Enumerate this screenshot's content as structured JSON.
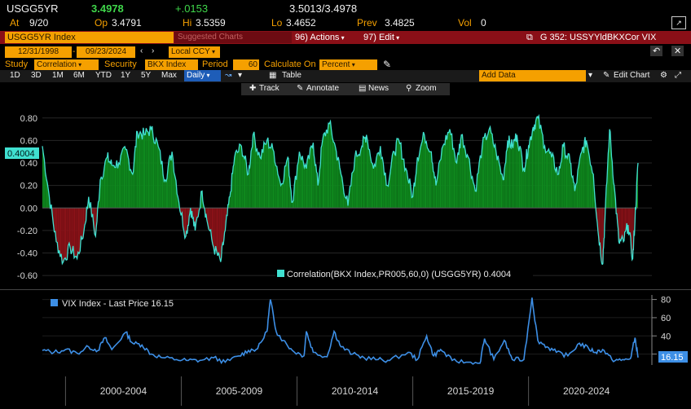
{
  "quote": {
    "ticker": "USGG5YR",
    "last": "3.4978",
    "change": "+.0153",
    "bid_ask": "3.5013/3.4978",
    "at_label": "At",
    "at_date": "9/20",
    "op_label": "Op",
    "op": "3.4791",
    "hi_label": "Hi",
    "hi": "3.5359",
    "lo_label": "Lo",
    "lo": "3.4652",
    "prev_label": "Prev",
    "prev": "3.4825",
    "vol_label": "Vol",
    "vol": "0"
  },
  "titlebar": {
    "security": "USGG5YR Index",
    "suggested": "Suggested Charts",
    "actions": "Actions",
    "actions_num": "96)",
    "edit": "Edit",
    "edit_num": "97)",
    "chart_title": "G 352: USSYYldBKXCor VIX"
  },
  "range": {
    "start": "12/31/1998",
    "end": "09/23/2024",
    "currency": "Local CCY"
  },
  "study": {
    "study_label": "Study",
    "study_value": "Correlation",
    "security_label": "Security",
    "security_value": "BKX Index",
    "period_label": "Period",
    "period_value": "60",
    "calc_label": "Calculate On",
    "calc_value": "Percent"
  },
  "toolbar": {
    "periods": [
      "1D",
      "3D",
      "1M",
      "6M",
      "YTD",
      "1Y",
      "5Y",
      "Max"
    ],
    "frequency": "Daily",
    "table": "Table",
    "add_data": "Add Data",
    "edit_chart": "Edit Chart"
  },
  "tools": {
    "track": "Track",
    "annotate": "Annotate",
    "news": "News",
    "zoom": "Zoom"
  },
  "colors": {
    "positive_fill": "#0f8a1e",
    "negative_fill": "#8a1218",
    "correlation_line": "#40e0d0",
    "vix_line": "#3d8fe6",
    "accent_amber": "#f5a000",
    "titlebar_red": "#8a0f17"
  },
  "chart_data": [
    {
      "type": "area",
      "title": "",
      "legend": "Correlation(BKX Index,PR005,60,0) (USGG5YR) 0.4004",
      "last_value_label": "0.4004",
      "yticks": [
        "0.80",
        "0.60",
        "0.40",
        "0.20",
        "0.00",
        "-0.20",
        "-0.40",
        "-0.60"
      ],
      "ylim": [
        -0.65,
        0.9
      ],
      "xlim": [
        1999.0,
        2024.73
      ],
      "series": [
        {
          "name": "Correlation(BKX Index,PR005,60,0) (USGG5YR)",
          "points": [
            [
              1999.0,
              0.55
            ],
            [
              1999.3,
              0.1
            ],
            [
              1999.6,
              -0.3
            ],
            [
              1999.9,
              -0.48
            ],
            [
              2000.2,
              -0.35
            ],
            [
              2000.5,
              -0.45
            ],
            [
              2000.8,
              -0.2
            ],
            [
              2001.0,
              0.1
            ],
            [
              2001.3,
              -0.25
            ],
            [
              2001.5,
              0.25
            ],
            [
              2001.8,
              0.45
            ],
            [
              2002.0,
              0.38
            ],
            [
              2002.3,
              0.4
            ],
            [
              2002.6,
              0.52
            ],
            [
              2002.9,
              0.3
            ],
            [
              2003.1,
              0.68
            ],
            [
              2003.4,
              0.65
            ],
            [
              2003.7,
              0.7
            ],
            [
              2004.0,
              0.55
            ],
            [
              2004.3,
              0.25
            ],
            [
              2004.6,
              0.5
            ],
            [
              2004.9,
              0.05
            ],
            [
              2005.2,
              -0.25
            ],
            [
              2005.4,
              0.0
            ],
            [
              2005.6,
              -0.2
            ],
            [
              2005.9,
              0.15
            ],
            [
              2006.1,
              -0.1
            ],
            [
              2006.4,
              -0.35
            ],
            [
              2006.7,
              -0.48
            ],
            [
              2006.9,
              -0.2
            ],
            [
              2007.1,
              0.1
            ],
            [
              2007.3,
              0.45
            ],
            [
              2007.6,
              0.55
            ],
            [
              2007.9,
              0.3
            ],
            [
              2008.1,
              0.65
            ],
            [
              2008.4,
              0.45
            ],
            [
              2008.7,
              0.6
            ],
            [
              2009.0,
              0.5
            ],
            [
              2009.3,
              0.2
            ],
            [
              2009.6,
              0.45
            ],
            [
              2009.8,
              0.05
            ],
            [
              2010.1,
              0.5
            ],
            [
              2010.4,
              0.35
            ],
            [
              2010.7,
              0.58
            ],
            [
              2010.9,
              0.2
            ],
            [
              2011.1,
              0.6
            ],
            [
              2011.4,
              0.75
            ],
            [
              2011.7,
              0.5
            ],
            [
              2011.9,
              0.3
            ],
            [
              2012.2,
              0.02
            ],
            [
              2012.5,
              0.45
            ],
            [
              2012.8,
              0.55
            ],
            [
              2013.0,
              0.65
            ],
            [
              2013.3,
              0.35
            ],
            [
              2013.6,
              0.55
            ],
            [
              2013.9,
              0.2
            ],
            [
              2014.2,
              0.5
            ],
            [
              2014.4,
              0.6
            ],
            [
              2014.7,
              0.35
            ],
            [
              2015.0,
              0.1
            ],
            [
              2015.2,
              0.45
            ],
            [
              2015.5,
              0.65
            ],
            [
              2015.8,
              0.5
            ],
            [
              2016.0,
              0.2
            ],
            [
              2016.3,
              0.55
            ],
            [
              2016.6,
              0.7
            ],
            [
              2016.9,
              0.4
            ],
            [
              2017.1,
              0.65
            ],
            [
              2017.4,
              0.45
            ],
            [
              2017.7,
              0.15
            ],
            [
              2018.0,
              0.55
            ],
            [
              2018.3,
              0.7
            ],
            [
              2018.6,
              0.5
            ],
            [
              2018.9,
              0.25
            ],
            [
              2019.1,
              0.6
            ],
            [
              2019.3,
              0.55
            ],
            [
              2019.5,
              0.65
            ],
            [
              2019.8,
              0.35
            ],
            [
              2020.0,
              0.55
            ],
            [
              2020.2,
              0.72
            ],
            [
              2020.4,
              0.8
            ],
            [
              2020.7,
              0.55
            ],
            [
              2021.0,
              0.45
            ],
            [
              2021.3,
              0.3
            ],
            [
              2021.5,
              0.55
            ],
            [
              2021.8,
              0.4
            ],
            [
              2022.0,
              0.15
            ],
            [
              2022.3,
              0.5
            ],
            [
              2022.5,
              0.6
            ],
            [
              2022.8,
              0.3
            ],
            [
              2023.0,
              -0.2
            ],
            [
              2023.2,
              -0.5
            ],
            [
              2023.3,
              -0.1
            ],
            [
              2023.5,
              0.7
            ],
            [
              2023.7,
              0.2
            ],
            [
              2023.9,
              -0.3
            ],
            [
              2024.1,
              -0.3
            ],
            [
              2024.3,
              -0.15
            ],
            [
              2024.5,
              -0.45
            ],
            [
              2024.6,
              -0.1
            ],
            [
              2024.73,
              0.4004
            ]
          ]
        }
      ]
    },
    {
      "type": "line",
      "title": "",
      "legend": "VIX Index - Last Price 16.15",
      "last_value_label": "16.15",
      "yticks": [
        "80",
        "60",
        "40",
        "20"
      ],
      "ylim": [
        8,
        85
      ],
      "xticks": [
        "2000-2004",
        "2005-2009",
        "2010-2014",
        "2015-2019",
        "2020-2024"
      ],
      "xlim": [
        1999.0,
        2024.73
      ],
      "series": [
        {
          "name": "VIX Index - Last Price",
          "points": [
            [
              1999.0,
              24
            ],
            [
              1999.5,
              22
            ],
            [
              2000.0,
              25
            ],
            [
              2000.5,
              21
            ],
            [
              2001.0,
              28
            ],
            [
              2001.4,
              24
            ],
            [
              2001.7,
              38
            ],
            [
              2002.0,
              25
            ],
            [
              2002.6,
              44
            ],
            [
              2002.9,
              32
            ],
            [
              2003.3,
              30
            ],
            [
              2003.7,
              20
            ],
            [
              2004.2,
              16
            ],
            [
              2004.8,
              14
            ],
            [
              2005.3,
              13
            ],
            [
              2005.8,
              13
            ],
            [
              2006.4,
              16
            ],
            [
              2006.9,
              11
            ],
            [
              2007.5,
              18
            ],
            [
              2007.9,
              24
            ],
            [
              2008.3,
              26
            ],
            [
              2008.7,
              45
            ],
            [
              2008.85,
              80
            ],
            [
              2009.1,
              45
            ],
            [
              2009.4,
              35
            ],
            [
              2009.8,
              24
            ],
            [
              2010.3,
              18
            ],
            [
              2010.4,
              45
            ],
            [
              2010.7,
              22
            ],
            [
              2011.3,
              17
            ],
            [
              2011.6,
              45
            ],
            [
              2011.9,
              28
            ],
            [
              2012.4,
              20
            ],
            [
              2012.9,
              16
            ],
            [
              2013.5,
              14
            ],
            [
              2014.0,
              13
            ],
            [
              2014.8,
              22
            ],
            [
              2015.2,
              14
            ],
            [
              2015.6,
              40
            ],
            [
              2015.9,
              18
            ],
            [
              2016.2,
              25
            ],
            [
              2016.7,
              13
            ],
            [
              2017.3,
              11
            ],
            [
              2017.9,
              10
            ],
            [
              2018.1,
              37
            ],
            [
              2018.5,
              14
            ],
            [
              2018.95,
              35
            ],
            [
              2019.3,
              14
            ],
            [
              2019.8,
              14
            ],
            [
              2020.15,
              82
            ],
            [
              2020.4,
              35
            ],
            [
              2020.8,
              28
            ],
            [
              2021.2,
              22
            ],
            [
              2021.7,
              18
            ],
            [
              2022.2,
              32
            ],
            [
              2022.6,
              26
            ],
            [
              2022.9,
              22
            ],
            [
              2023.2,
              25
            ],
            [
              2023.6,
              14
            ],
            [
              2024.0,
              13
            ],
            [
              2024.4,
              15
            ],
            [
              2024.6,
              38
            ],
            [
              2024.73,
              16.15
            ]
          ]
        }
      ]
    }
  ]
}
